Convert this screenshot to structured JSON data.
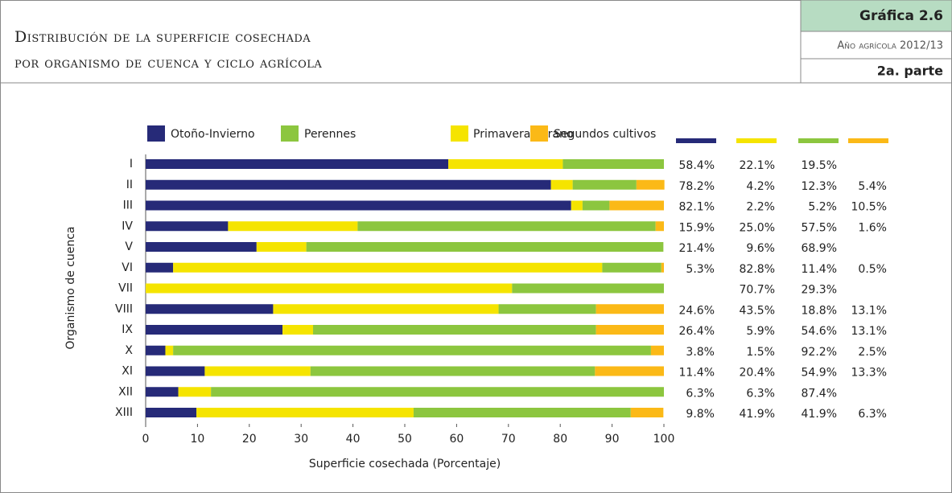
{
  "header": {
    "title": [
      "Distribución de la superficie cosechada",
      "por organismo de cuenca y ciclo agrícola"
    ],
    "label": "Gráfica 2.6",
    "subtitle": "Año agrícola 2012/13",
    "part": "2a. parte"
  },
  "chart_data": {
    "type": "stacked-barh",
    "categories": [
      "I",
      "II",
      "III",
      "IV",
      "V",
      "VI",
      "VII",
      "VIII",
      "IX",
      "X",
      "XI",
      "XII",
      "XIII"
    ],
    "series": [
      {
        "name": "Otoño-Invierno",
        "color": "#262a78",
        "values": [
          58.4,
          78.2,
          82.1,
          15.9,
          21.4,
          5.3,
          null,
          24.6,
          26.4,
          3.8,
          11.4,
          6.3,
          9.8
        ],
        "value_labels": [
          "58.4%",
          "78.2%",
          "82.1%",
          "15.9%",
          "21.4%",
          "5.3%",
          null,
          "24.6%",
          "26.4%",
          "3.8%",
          "11.4%",
          "6.3%",
          "9.8%"
        ]
      },
      {
        "name": "Primavera-Verano",
        "color": "#f5e400",
        "values": [
          22.1,
          4.2,
          2.2,
          25.0,
          9.6,
          82.8,
          70.7,
          43.5,
          5.9,
          1.5,
          20.4,
          6.3,
          41.9
        ],
        "value_labels": [
          "22.1%",
          "4.2%",
          "2.2%",
          "25.0%",
          "9.6%",
          "82.8%",
          "70.7%",
          "43.5%",
          "5.9%",
          "1.5%",
          "20.4%",
          "6.3%",
          "41.9%"
        ]
      },
      {
        "name": "Perennes",
        "color": "#8cc63f",
        "values": [
          19.5,
          12.3,
          5.2,
          57.5,
          68.9,
          11.4,
          29.3,
          18.8,
          54.6,
          92.2,
          54.9,
          87.4,
          41.9
        ],
        "value_labels": [
          "19.5%",
          "12.3%",
          "5.2%",
          "57.5%",
          "68.9%",
          "11.4%",
          "29.3%",
          "18.8%",
          "54.6%",
          "92.2%",
          "54.9%",
          "87.4%",
          "41.9%"
        ]
      },
      {
        "name": "Segundos cultivos",
        "color": "#fbb917",
        "values": [
          null,
          5.4,
          10.5,
          1.6,
          null,
          0.5,
          null,
          13.1,
          13.1,
          2.5,
          13.3,
          null,
          6.3
        ],
        "value_labels": [
          null,
          "5.4%",
          "10.5%",
          "1.6%",
          null,
          "0.5%",
          null,
          "13.1%",
          "13.1%",
          "2.5%",
          "13.3%",
          null,
          "6.3%"
        ]
      }
    ],
    "legend_order": [
      0,
      2,
      1,
      3
    ],
    "xlabel": "Superficie cosechada  (Porcentaje)",
    "ylabel": "Organismo de cuenca",
    "xlim": [
      0,
      100
    ],
    "xticks": [
      0,
      10,
      20,
      30,
      40,
      50,
      60,
      70,
      80,
      90,
      100
    ],
    "grid": false
  }
}
